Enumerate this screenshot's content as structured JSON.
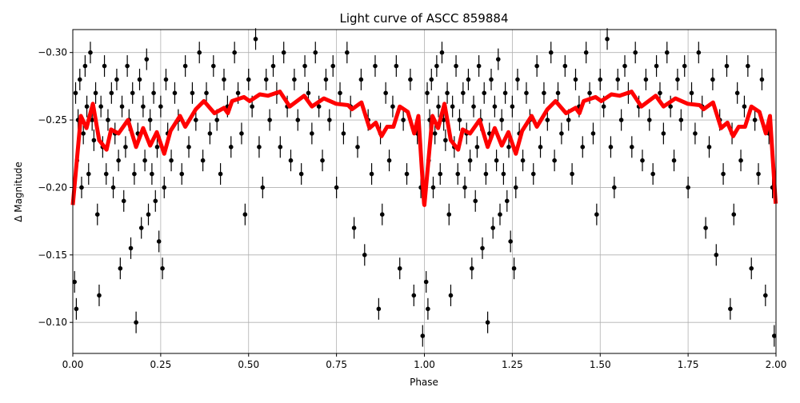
{
  "chart_data": {
    "type": "scatter",
    "title": "Light curve of ASCC 859884",
    "xlabel": "Phase",
    "ylabel": "Δ Magnitude",
    "xlim": [
      0,
      2
    ],
    "ylim": [
      -0.317,
      -0.077
    ],
    "y_inverted": true,
    "grid": true,
    "xticks": [
      "0.00",
      "0.25",
      "0.50",
      "0.75",
      "1.00",
      "1.25",
      "1.50",
      "1.75",
      "2.00"
    ],
    "xtick_values": [
      0,
      0.25,
      0.5,
      0.75,
      1,
      1.25,
      1.5,
      1.75,
      2
    ],
    "yticks": [
      "−0.30",
      "−0.25",
      "−0.20",
      "−0.15",
      "−0.10"
    ],
    "ytick_values": [
      -0.3,
      -0.25,
      -0.2,
      -0.15,
      -0.1
    ],
    "repeat_period": 1,
    "colors": {
      "points": "#000000",
      "model": "#ff0000",
      "grid": "#b0b0b0"
    },
    "typical_error": 0.008,
    "points": [
      [
        0.005,
        -0.13
      ],
      [
        0.008,
        -0.27
      ],
      [
        0.01,
        -0.11
      ],
      [
        0.012,
        -0.22
      ],
      [
        0.015,
        -0.25
      ],
      [
        0.02,
        -0.28
      ],
      [
        0.025,
        -0.2
      ],
      [
        0.03,
        -0.24
      ],
      [
        0.035,
        -0.29
      ],
      [
        0.04,
        -0.26
      ],
      [
        0.045,
        -0.21
      ],
      [
        0.05,
        -0.3
      ],
      [
        0.055,
        -0.25
      ],
      [
        0.06,
        -0.235
      ],
      [
        0.065,
        -0.27
      ],
      [
        0.07,
        -0.18
      ],
      [
        0.075,
        -0.12
      ],
      [
        0.08,
        -0.26
      ],
      [
        0.085,
        -0.23
      ],
      [
        0.09,
        -0.29
      ],
      [
        0.095,
        -0.21
      ],
      [
        0.1,
        -0.25
      ],
      [
        0.11,
        -0.27
      ],
      [
        0.115,
        -0.2
      ],
      [
        0.12,
        -0.24
      ],
      [
        0.125,
        -0.28
      ],
      [
        0.13,
        -0.22
      ],
      [
        0.135,
        -0.14
      ],
      [
        0.14,
        -0.26
      ],
      [
        0.145,
        -0.19
      ],
      [
        0.15,
        -0.23
      ],
      [
        0.155,
        -0.29
      ],
      [
        0.16,
        -0.25
      ],
      [
        0.165,
        -0.155
      ],
      [
        0.17,
        -0.27
      ],
      [
        0.175,
        -0.21
      ],
      [
        0.18,
        -0.1
      ],
      [
        0.185,
        -0.24
      ],
      [
        0.19,
        -0.28
      ],
      [
        0.195,
        -0.17
      ],
      [
        0.2,
        -0.26
      ],
      [
        0.205,
        -0.22
      ],
      [
        0.21,
        -0.295
      ],
      [
        0.215,
        -0.18
      ],
      [
        0.22,
        -0.25
      ],
      [
        0.225,
        -0.21
      ],
      [
        0.23,
        -0.27
      ],
      [
        0.235,
        -0.19
      ],
      [
        0.24,
        -0.23
      ],
      [
        0.245,
        -0.16
      ],
      [
        0.25,
        -0.26
      ],
      [
        0.255,
        -0.14
      ],
      [
        0.26,
        -0.2
      ],
      [
        0.265,
        -0.28
      ],
      [
        0.27,
        -0.24
      ],
      [
        0.28,
        -0.22
      ],
      [
        0.29,
        -0.27
      ],
      [
        0.3,
        -0.25
      ],
      [
        0.31,
        -0.21
      ],
      [
        0.32,
        -0.29
      ],
      [
        0.33,
        -0.23
      ],
      [
        0.34,
        -0.27
      ],
      [
        0.35,
        -0.25
      ],
      [
        0.36,
        -0.3
      ],
      [
        0.37,
        -0.22
      ],
      [
        0.38,
        -0.27
      ],
      [
        0.39,
        -0.24
      ],
      [
        0.4,
        -0.29
      ],
      [
        0.41,
        -0.25
      ],
      [
        0.42,
        -0.21
      ],
      [
        0.43,
        -0.28
      ],
      [
        0.44,
        -0.26
      ],
      [
        0.45,
        -0.23
      ],
      [
        0.46,
        -0.3
      ],
      [
        0.47,
        -0.27
      ],
      [
        0.48,
        -0.24
      ],
      [
        0.49,
        -0.18
      ],
      [
        0.5,
        -0.28
      ],
      [
        0.51,
        -0.26
      ],
      [
        0.52,
        -0.31
      ],
      [
        0.53,
        -0.23
      ],
      [
        0.54,
        -0.2
      ],
      [
        0.55,
        -0.28
      ],
      [
        0.56,
        -0.25
      ],
      [
        0.57,
        -0.29
      ],
      [
        0.58,
        -0.27
      ],
      [
        0.59,
        -0.23
      ],
      [
        0.6,
        -0.3
      ],
      [
        0.61,
        -0.26
      ],
      [
        0.62,
        -0.22
      ],
      [
        0.63,
        -0.28
      ],
      [
        0.64,
        -0.25
      ],
      [
        0.65,
        -0.21
      ],
      [
        0.66,
        -0.29
      ],
      [
        0.67,
        -0.27
      ],
      [
        0.68,
        -0.24
      ],
      [
        0.69,
        -0.3
      ],
      [
        0.7,
        -0.26
      ],
      [
        0.71,
        -0.22
      ],
      [
        0.72,
        -0.28
      ],
      [
        0.73,
        -0.25
      ],
      [
        0.74,
        -0.29
      ],
      [
        0.75,
        -0.2
      ],
      [
        0.76,
        -0.27
      ],
      [
        0.77,
        -0.24
      ],
      [
        0.78,
        -0.3
      ],
      [
        0.79,
        -0.26
      ],
      [
        0.8,
        -0.17
      ],
      [
        0.81,
        -0.23
      ],
      [
        0.82,
        -0.28
      ],
      [
        0.83,
        -0.15
      ],
      [
        0.84,
        -0.25
      ],
      [
        0.85,
        -0.21
      ],
      [
        0.86,
        -0.29
      ],
      [
        0.87,
        -0.11
      ],
      [
        0.875,
        -0.24
      ],
      [
        0.88,
        -0.18
      ],
      [
        0.89,
        -0.27
      ],
      [
        0.9,
        -0.22
      ],
      [
        0.91,
        -0.26
      ],
      [
        0.92,
        -0.29
      ],
      [
        0.93,
        -0.14
      ],
      [
        0.94,
        -0.25
      ],
      [
        0.95,
        -0.21
      ],
      [
        0.96,
        -0.28
      ],
      [
        0.97,
        -0.12
      ],
      [
        0.98,
        -0.24
      ],
      [
        0.99,
        -0.2
      ],
      [
        0.995,
        -0.09
      ]
    ],
    "model": [
      [
        0,
        -0.187
      ],
      [
        0.023,
        -0.253
      ],
      [
        0.039,
        -0.244
      ],
      [
        0.057,
        -0.262
      ],
      [
        0.075,
        -0.235
      ],
      [
        0.096,
        -0.228
      ],
      [
        0.109,
        -0.243
      ],
      [
        0.13,
        -0.24
      ],
      [
        0.157,
        -0.25
      ],
      [
        0.18,
        -0.23
      ],
      [
        0.2,
        -0.244
      ],
      [
        0.22,
        -0.231
      ],
      [
        0.239,
        -0.241
      ],
      [
        0.26,
        -0.225
      ],
      [
        0.278,
        -0.242
      ],
      [
        0.305,
        -0.253
      ],
      [
        0.32,
        -0.245
      ],
      [
        0.35,
        -0.258
      ],
      [
        0.373,
        -0.264
      ],
      [
        0.403,
        -0.255
      ],
      [
        0.43,
        -0.259
      ],
      [
        0.441,
        -0.255
      ],
      [
        0.453,
        -0.264
      ],
      [
        0.487,
        -0.267
      ],
      [
        0.503,
        -0.264
      ],
      [
        0.532,
        -0.269
      ],
      [
        0.555,
        -0.268
      ],
      [
        0.589,
        -0.271
      ],
      [
        0.617,
        -0.26
      ],
      [
        0.658,
        -0.268
      ],
      [
        0.68,
        -0.26
      ],
      [
        0.714,
        -0.266
      ],
      [
        0.749,
        -0.262
      ],
      [
        0.783,
        -0.261
      ],
      [
        0.794,
        -0.258
      ],
      [
        0.821,
        -0.263
      ],
      [
        0.844,
        -0.244
      ],
      [
        0.862,
        -0.248
      ],
      [
        0.878,
        -0.238
      ],
      [
        0.894,
        -0.245
      ],
      [
        0.912,
        -0.245
      ],
      [
        0.93,
        -0.26
      ],
      [
        0.953,
        -0.256
      ],
      [
        0.971,
        -0.24
      ],
      [
        0.983,
        -0.253
      ],
      [
        0.999,
        -0.188
      ]
    ]
  }
}
